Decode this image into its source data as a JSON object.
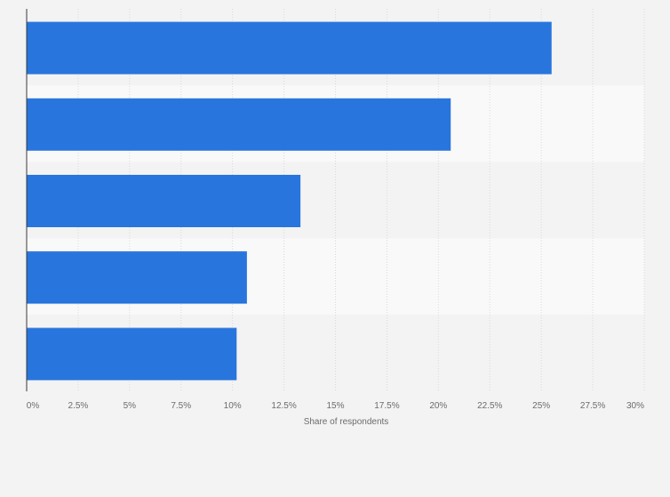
{
  "chart_data": {
    "type": "bar",
    "orientation": "horizontal",
    "categories": [
      "",
      "",
      "",
      "",
      ""
    ],
    "values": [
      25.5,
      20.6,
      13.3,
      10.7,
      10.2
    ],
    "xlabel": "Share of respondents",
    "ylabel": "",
    "xlim": [
      0,
      30
    ],
    "ticks": [
      0,
      2.5,
      5,
      7.5,
      10,
      12.5,
      15,
      17.5,
      20,
      22.5,
      25,
      27.5,
      30
    ],
    "tick_labels": [
      "0%",
      "2.5%",
      "5%",
      "7.5%",
      "10%",
      "12.5%",
      "15%",
      "17.5%",
      "20%",
      "22.5%",
      "25%",
      "27.5%",
      "30%"
    ],
    "grid": true,
    "legend": "none",
    "colors": {
      "bar": "#2876dd",
      "band_dark": "#f3f3f3",
      "band_light": "#f9f9f9",
      "grid": "#d9d9d9",
      "axis": "#3a3a3a"
    }
  }
}
